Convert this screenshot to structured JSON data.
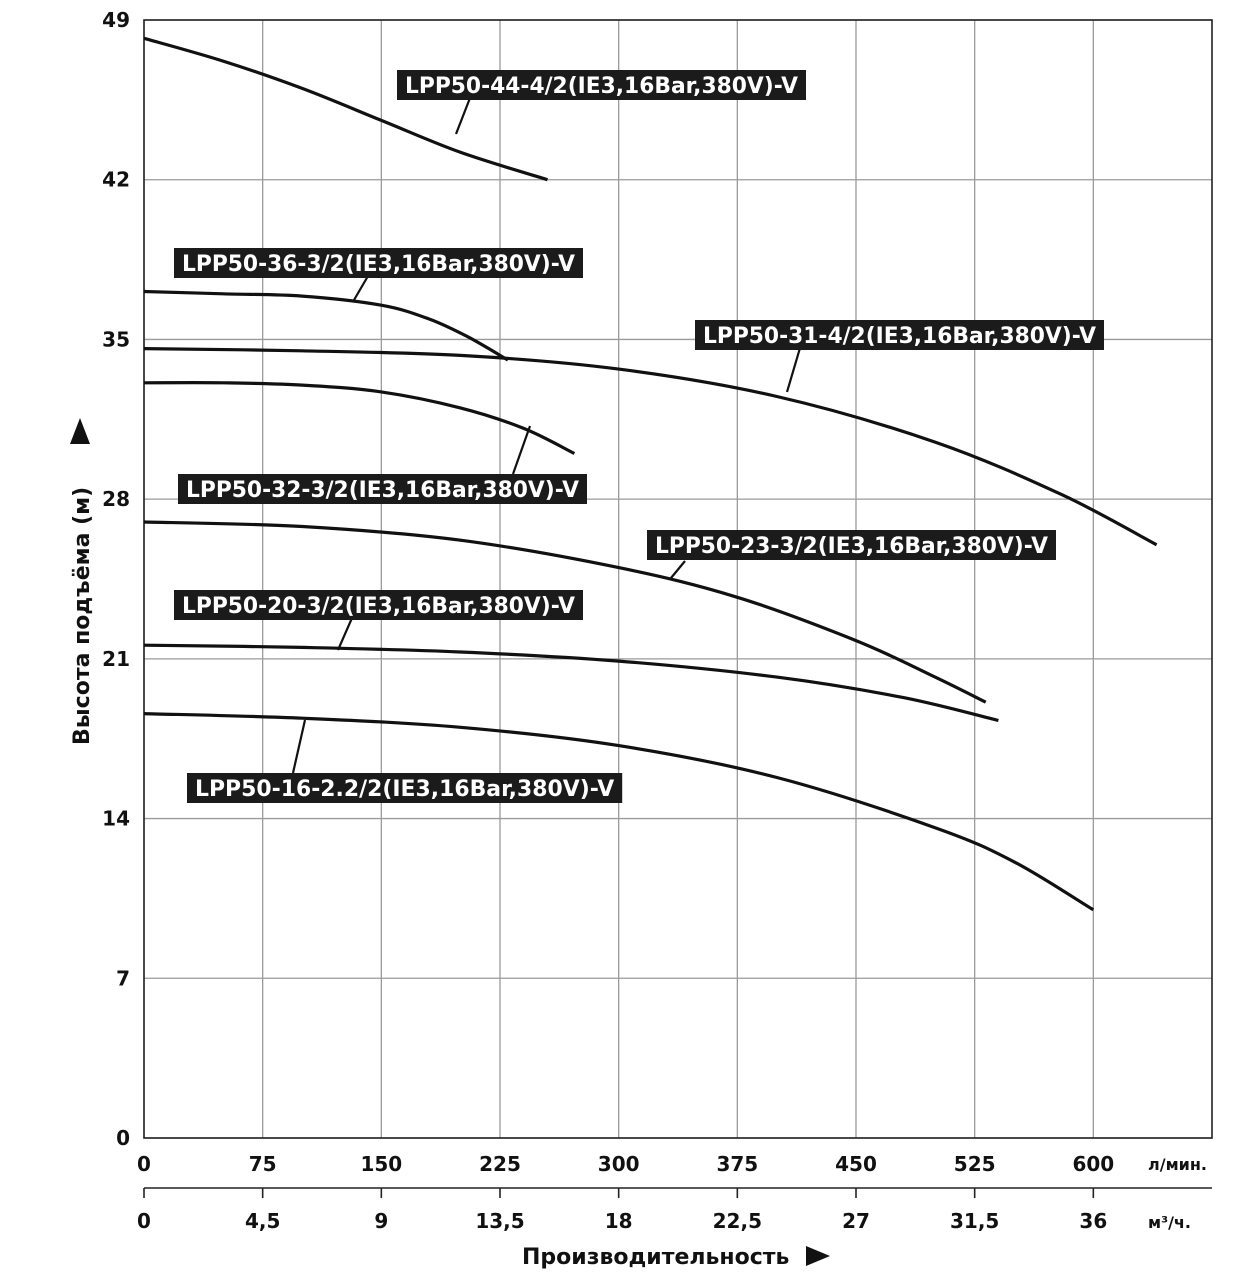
{
  "chart_data": {
    "type": "line",
    "title": "",
    "xlabel": "Производительность",
    "ylabel": "Высота подъёма (м)",
    "x_unit": "л/мин.",
    "x2_unit": "м³/ч.",
    "xlim": [
      0,
      675
    ],
    "ylim": [
      0,
      49
    ],
    "x_ticks": [
      "0",
      "75",
      "150",
      "225",
      "300",
      "375",
      "450",
      "525",
      "600"
    ],
    "x2_ticks": [
      "0",
      "4,5",
      "9",
      "13,5",
      "18",
      "22,5",
      "27",
      "31,5",
      "36"
    ],
    "y_ticks": [
      "0",
      "7",
      "14",
      "21",
      "28",
      "35",
      "42",
      "49"
    ],
    "grid": true,
    "series": [
      {
        "name": "LPP50-44-4/2(IE3,16Bar,380V)-V",
        "x": [
          0,
          50,
          100,
          150,
          200,
          255
        ],
        "y": [
          48.2,
          47.2,
          46.0,
          44.6,
          43.2,
          42.0
        ]
      },
      {
        "name": "LPP50-36-3/2(IE3,16Bar,380V)-V",
        "x": [
          0,
          50,
          100,
          150,
          180,
          205,
          230
        ],
        "y": [
          37.1,
          37.0,
          36.9,
          36.5,
          35.9,
          35.1,
          34.1
        ]
      },
      {
        "name": "LPP50-31-4/2(IE3,16Bar,380V)-V",
        "x": [
          0,
          100,
          200,
          300,
          400,
          500,
          580,
          640
        ],
        "y": [
          34.6,
          34.5,
          34.3,
          33.7,
          32.5,
          30.5,
          28.2,
          26.0
        ]
      },
      {
        "name": "LPP50-32-3/2(IE3,16Bar,380V)-V",
        "x": [
          0,
          50,
          100,
          150,
          200,
          240,
          272
        ],
        "y": [
          33.1,
          33.1,
          33.0,
          32.7,
          32.0,
          31.1,
          30.0
        ]
      },
      {
        "name": "LPP50-23-3/2(IE3,16Bar,380V)-V",
        "x": [
          0,
          100,
          200,
          300,
          375,
          450,
          500,
          532
        ],
        "y": [
          27.0,
          26.8,
          26.2,
          25.0,
          23.7,
          21.8,
          20.2,
          19.1
        ]
      },
      {
        "name": "LPP50-20-3/2(IE3,16Bar,380V)-V",
        "x": [
          0,
          100,
          200,
          300,
          400,
          480,
          540
        ],
        "y": [
          21.6,
          21.5,
          21.3,
          20.9,
          20.2,
          19.3,
          18.3
        ]
      },
      {
        "name": "LPP50-16-2.2/2(IE3,16Bar,380V)-V",
        "x": [
          0,
          100,
          200,
          300,
          400,
          500,
          550,
          600
        ],
        "y": [
          18.6,
          18.4,
          18.0,
          17.2,
          15.8,
          13.6,
          12.1,
          10.0
        ]
      }
    ]
  }
}
